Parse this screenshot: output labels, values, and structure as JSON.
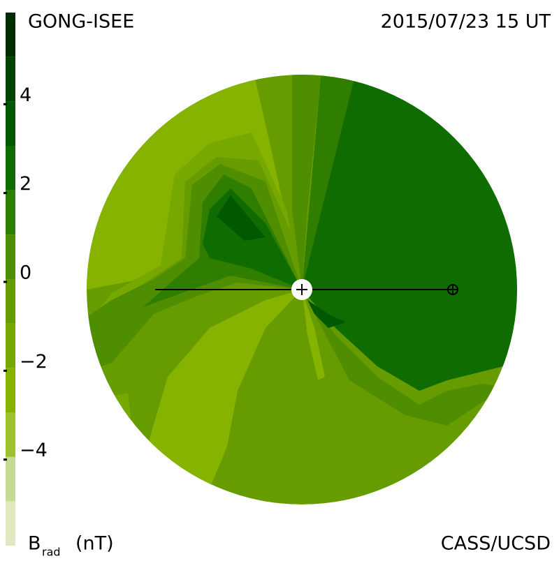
{
  "chart_data": {
    "type": "contour",
    "title": "GONG-ISEE",
    "subtitle": "2015/07/23 15 UT",
    "colorbar_label": "B",
    "colorbar_label_sub": "rad",
    "colorbar_unit": "(nT)",
    "credit": "CASS/UCSD",
    "levels": [
      -6,
      -5,
      -4,
      -3,
      -2,
      -1,
      0,
      1,
      2,
      3,
      4,
      5,
      6
    ],
    "colors": [
      "#dfe9c0",
      "#c6da94",
      "#9cc22c",
      "#86b300",
      "#76a800",
      "#669c00",
      "#4f8e00",
      "#2f7e00",
      "#0f6c00",
      "#005800",
      "#004200",
      "#002c00"
    ],
    "ylim": [
      -6,
      6
    ],
    "yticks": [
      {
        "value": -4,
        "label": "−4"
      },
      {
        "value": -2,
        "label": "−2"
      },
      0,
      2,
      4
    ]
  }
}
